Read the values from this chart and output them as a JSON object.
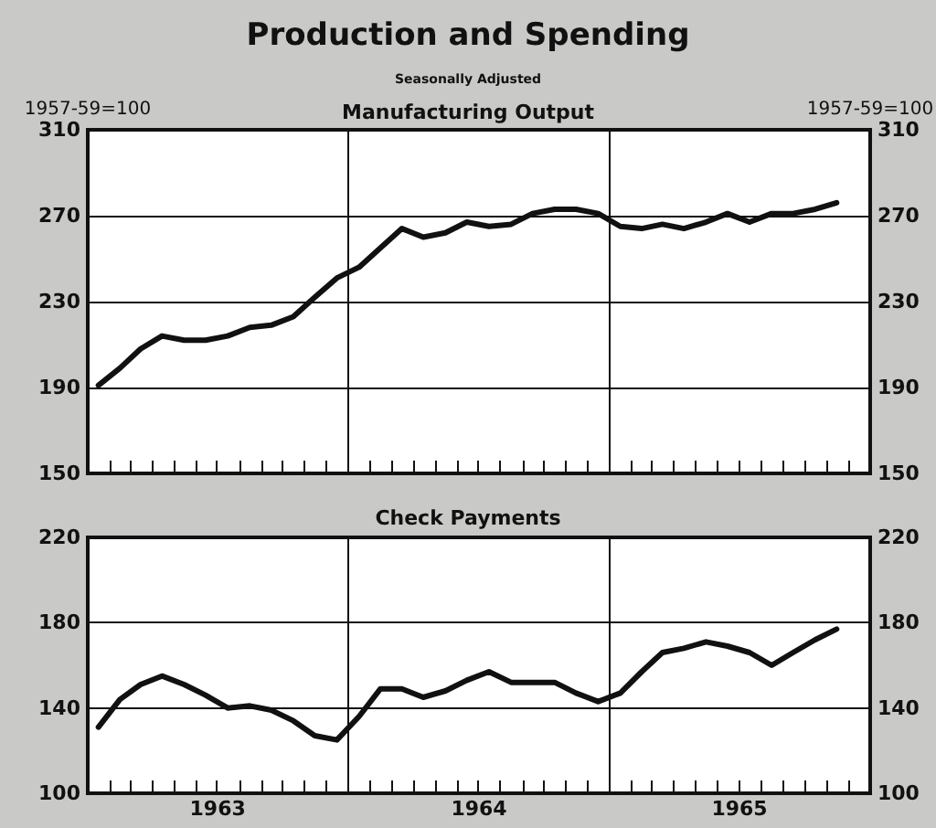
{
  "chart_data": [
    {
      "type": "line",
      "title": "Production and Spending",
      "subtitle": "Seasonally Adjusted",
      "annotations": [
        "Manufacturing Output"
      ],
      "ylabel": "1957-59=100",
      "y2label": "1957-59=100",
      "x": [
        "1963-01-16",
        "1963-02-15",
        "1963-03-16",
        "1963-04-15",
        "1963-05-16",
        "1963-06-15",
        "1963-07-16",
        "1963-08-16",
        "1963-09-15",
        "1963-10-16",
        "1963-11-15",
        "1963-12-16",
        "1964-01-16",
        "1964-02-15",
        "1964-03-16",
        "1964-04-15",
        "1964-05-16",
        "1964-06-15",
        "1964-07-16",
        "1964-08-16",
        "1964-09-15",
        "1964-10-16",
        "1964-11-15",
        "1964-12-16",
        "1965-01-16",
        "1965-02-15",
        "1965-03-16",
        "1965-04-15",
        "1965-05-16",
        "1965-06-15",
        "1965-07-16",
        "1965-08-16",
        "1965-09-15",
        "1965-10-16",
        "1965-11-15"
      ],
      "series": [
        {
          "color": "#111111",
          "values": [
            191,
            199,
            208,
            214,
            212,
            212,
            214,
            218,
            219,
            223,
            232,
            241,
            246,
            255,
            264,
            260,
            262,
            267,
            265,
            266,
            271,
            273,
            273,
            271,
            265,
            264,
            266,
            264,
            267,
            271,
            267,
            271,
            271,
            273,
            276
          ]
        }
      ],
      "xlim": [
        "1963-01-01",
        "1966-01-01"
      ],
      "xticks": [
        {
          "value": "1963-01-01",
          "label": null
        },
        {
          "value": "1963-02-01",
          "label": null
        },
        {
          "value": "1963-03-01",
          "label": null
        },
        {
          "value": "1963-04-01",
          "label": null
        },
        {
          "value": "1963-05-01",
          "label": null
        },
        {
          "value": "1963-06-01",
          "label": null
        },
        {
          "value": "1963-07-01",
          "label": null
        },
        {
          "value": "1963-08-01",
          "label": null
        },
        {
          "value": "1963-09-01",
          "label": null
        },
        {
          "value": "1963-10-01",
          "label": null
        },
        {
          "value": "1963-11-01",
          "label": null
        },
        {
          "value": "1963-12-01",
          "label": null
        },
        {
          "value": "1964-01-01",
          "label": null
        },
        {
          "value": "1964-02-01",
          "label": null
        },
        {
          "value": "1964-03-01",
          "label": null
        },
        {
          "value": "1964-04-01",
          "label": null
        },
        {
          "value": "1964-05-01",
          "label": null
        },
        {
          "value": "1964-06-01",
          "label": null
        },
        {
          "value": "1964-07-01",
          "label": null
        },
        {
          "value": "1964-08-01",
          "label": null
        },
        {
          "value": "1964-09-01",
          "label": null
        },
        {
          "value": "1964-10-01",
          "label": null
        },
        {
          "value": "1964-11-01",
          "label": null
        },
        {
          "value": "1964-12-01",
          "label": null
        },
        {
          "value": "1965-01-01",
          "label": null
        },
        {
          "value": "1965-02-01",
          "label": null
        },
        {
          "value": "1965-03-01",
          "label": null
        },
        {
          "value": "1965-04-01",
          "label": null
        },
        {
          "value": "1965-05-01",
          "label": null
        },
        {
          "value": "1965-06-01",
          "label": null
        },
        {
          "value": "1965-07-01",
          "label": null
        },
        {
          "value": "1965-08-01",
          "label": null
        },
        {
          "value": "1965-09-01",
          "label": null
        },
        {
          "value": "1965-10-01",
          "label": null
        },
        {
          "value": "1965-11-01",
          "label": null
        },
        {
          "value": "1965-12-01",
          "label": null
        },
        {
          "value": "1966-01-01",
          "label": null
        }
      ],
      "ylim": [
        150,
        310
      ],
      "yticks": [
        150,
        190,
        230,
        270,
        310
      ],
      "y2lim": [
        150,
        310
      ],
      "y2ticks": [
        150,
        190,
        230,
        270,
        310
      ],
      "ref_lines": [
        {
          "axis": "x",
          "value": "1964-01-01",
          "color": "#111111"
        },
        {
          "axis": "x",
          "value": "1965-01-01",
          "color": "#111111"
        }
      ],
      "grid": "y",
      "marker": "none",
      "line_style": "solid",
      "tick_labels": "y"
    },
    {
      "type": "line",
      "title": "Check Payments",
      "x": [
        "1963-01-16",
        "1963-02-15",
        "1963-03-16",
        "1963-04-15",
        "1963-05-16",
        "1963-06-15",
        "1963-07-16",
        "1963-08-16",
        "1963-09-15",
        "1963-10-16",
        "1963-11-15",
        "1963-12-16",
        "1964-01-16",
        "1964-02-15",
        "1964-03-16",
        "1964-04-15",
        "1964-05-16",
        "1964-06-15",
        "1964-07-16",
        "1964-08-16",
        "1964-09-15",
        "1964-10-16",
        "1964-11-15",
        "1964-12-16",
        "1965-01-16",
        "1965-02-15",
        "1965-03-16",
        "1965-04-15",
        "1965-05-16",
        "1965-06-15",
        "1965-07-16",
        "1965-08-16",
        "1965-09-15",
        "1965-10-16",
        "1965-11-15"
      ],
      "series": [
        {
          "color": "#111111",
          "values": [
            131,
            144,
            151,
            155,
            151,
            146,
            140,
            141,
            139,
            134,
            127,
            125,
            136,
            149,
            149,
            145,
            148,
            153,
            157,
            152,
            152,
            152,
            147,
            143,
            147,
            157,
            166,
            168,
            171,
            169,
            166,
            160,
            166,
            172,
            177
          ]
        }
      ],
      "xlim": [
        "1963-01-01",
        "1966-01-01"
      ],
      "xticks": [
        {
          "value": "1963-01-01",
          "label": null
        },
        {
          "value": "1963-02-01",
          "label": null
        },
        {
          "value": "1963-03-01",
          "label": null
        },
        {
          "value": "1963-04-01",
          "label": null
        },
        {
          "value": "1963-05-01",
          "label": null
        },
        {
          "value": "1963-06-01",
          "label": null
        },
        {
          "value": "1963-07-01",
          "label": null
        },
        {
          "value": "1963-07-02",
          "label": "1963"
        },
        {
          "value": "1963-08-01",
          "label": null
        },
        {
          "value": "1963-09-01",
          "label": null
        },
        {
          "value": "1963-10-01",
          "label": null
        },
        {
          "value": "1963-11-01",
          "label": null
        },
        {
          "value": "1963-12-01",
          "label": null
        },
        {
          "value": "1964-01-01",
          "label": null
        },
        {
          "value": "1964-02-01",
          "label": null
        },
        {
          "value": "1964-03-01",
          "label": null
        },
        {
          "value": "1964-04-01",
          "label": null
        },
        {
          "value": "1964-05-01",
          "label": null
        },
        {
          "value": "1964-06-01",
          "label": null
        },
        {
          "value": "1964-07-01",
          "label": null
        },
        {
          "value": "1964-07-02",
          "label": "1964"
        },
        {
          "value": "1964-08-01",
          "label": null
        },
        {
          "value": "1964-09-01",
          "label": null
        },
        {
          "value": "1964-10-01",
          "label": null
        },
        {
          "value": "1964-11-01",
          "label": null
        },
        {
          "value": "1964-12-01",
          "label": null
        },
        {
          "value": "1965-01-01",
          "label": null
        },
        {
          "value": "1965-02-01",
          "label": null
        },
        {
          "value": "1965-03-01",
          "label": null
        },
        {
          "value": "1965-04-01",
          "label": null
        },
        {
          "value": "1965-05-01",
          "label": null
        },
        {
          "value": "1965-06-01",
          "label": null
        },
        {
          "value": "1965-07-01",
          "label": null
        },
        {
          "value": "1965-07-02",
          "label": "1965"
        },
        {
          "value": "1965-08-01",
          "label": null
        },
        {
          "value": "1965-09-01",
          "label": null
        },
        {
          "value": "1965-10-01",
          "label": null
        },
        {
          "value": "1965-11-01",
          "label": null
        },
        {
          "value": "1965-12-01",
          "label": null
        },
        {
          "value": "1966-01-01",
          "label": null
        }
      ],
      "ylim": [
        100,
        220
      ],
      "yticks": [
        100,
        140,
        180,
        220
      ],
      "y2lim": [
        100,
        220
      ],
      "y2ticks": [
        100,
        140,
        180,
        220
      ],
      "ref_lines": [
        {
          "axis": "x",
          "value": "1964-01-01",
          "color": "#111111"
        },
        {
          "axis": "x",
          "value": "1965-01-01",
          "color": "#111111"
        }
      ],
      "grid": "y",
      "marker": "none",
      "line_style": "solid"
    }
  ]
}
